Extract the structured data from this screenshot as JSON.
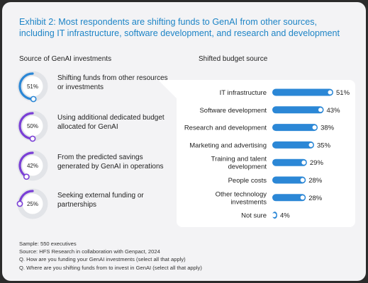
{
  "title": "Exhibit 2: Most respondents are shifting funds to GenAI from other sources, including IT infrastructure, software development, and research and development",
  "left": {
    "heading": "Source of GenAI investments",
    "items": [
      {
        "value": 51,
        "value_label": "51%",
        "label": "Shifting funds from other resources or investments"
      },
      {
        "value": 50,
        "value_label": "50%",
        "label": "Using additional dedicated budget allocated for GenAI"
      },
      {
        "value": 42,
        "value_label": "42%",
        "label": "From the predicted savings generated by GenAI in operations"
      },
      {
        "value": 25,
        "value_label": "25%",
        "label": "Seeking external funding or partnerships"
      }
    ]
  },
  "right": {
    "heading": "Shifted budget source"
  },
  "colors": {
    "title_blue": "#1d84c6",
    "bar_blue": "#2b87d6",
    "donut_purple": "#7a3fd6",
    "track_gray": "#e2e4e8"
  },
  "chart_data": [
    {
      "type": "bar",
      "orientation": "horizontal",
      "title": "Shifted budget source",
      "categories": [
        [
          "IT infrastructure"
        ],
        [
          "Software development"
        ],
        [
          "Research and development"
        ],
        [
          "Marketing and advertising"
        ],
        [
          "Training and talent",
          "development"
        ],
        [
          "People costs"
        ],
        [
          "Other technology",
          "investments"
        ],
        [
          "Not sure"
        ]
      ],
      "values": [
        51,
        43,
        38,
        35,
        29,
        28,
        28,
        4
      ],
      "value_labels": [
        "51%",
        "43%",
        "38%",
        "35%",
        "29%",
        "28%",
        "28%",
        "4%"
      ],
      "xlim": [
        0,
        51
      ],
      "grid": false
    },
    {
      "type": "donut",
      "title": "Source of GenAI investments",
      "categories": [
        "Shifting funds from other resources or investments",
        "Using additional dedicated budget allocated for GenAI",
        "From the predicted savings generated by GenAI in operations",
        "Seeking external funding or partnerships"
      ],
      "values": [
        51,
        50,
        42,
        25
      ]
    }
  ],
  "footnotes": [
    "Sample: 550 executives",
    "Source: HFS Research in collaboration with Genpact, 2024",
    "Q. How are you funding your GenAI investments (select all that apply)",
    "Q. Where are you shifting funds from to invest in GenAI (select all that apply)"
  ]
}
